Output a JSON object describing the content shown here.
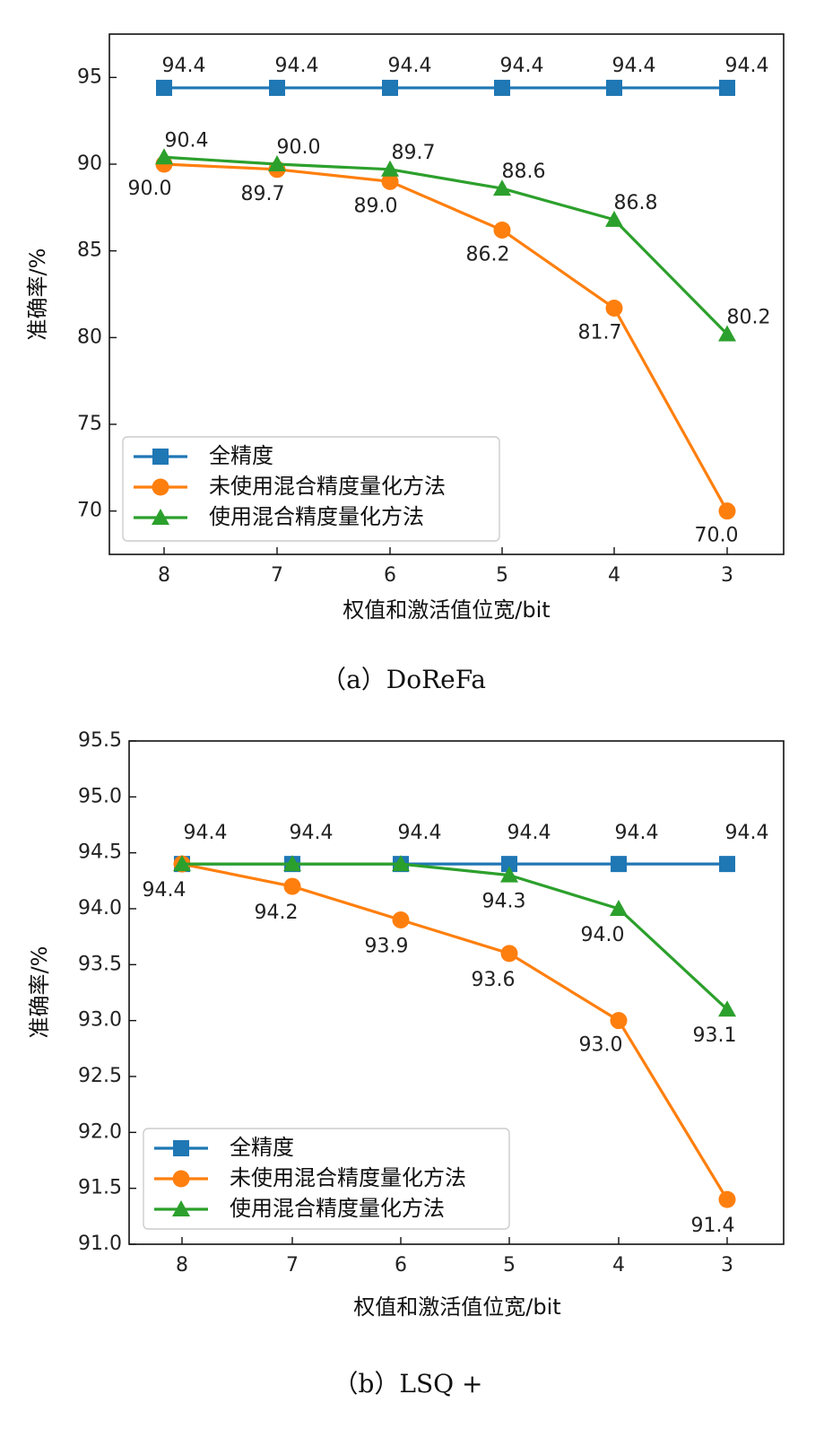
{
  "colors": {
    "full": "#1f77b4",
    "no_mixed": "#ff7f0e",
    "mixed": "#2ca02c"
  },
  "chart_data": [
    {
      "type": "line",
      "caption": "（a）DoReFa",
      "xlabel": "权值和激活值位宽/bit",
      "ylabel": "准确率/%",
      "categories": [
        "8",
        "7",
        "6",
        "5",
        "4",
        "3"
      ],
      "ylim": [
        67.5,
        97.5
      ],
      "yticks": [
        "70",
        "75",
        "80",
        "85",
        "90",
        "95"
      ],
      "grid": false,
      "legend_position": "lower-left",
      "series": [
        {
          "name": "全精度",
          "marker": "square",
          "color_key": "full",
          "values": [
            94.4,
            94.4,
            94.4,
            94.4,
            94.4,
            94.4
          ],
          "labels": [
            "94.4",
            "94.4",
            "94.4",
            "94.4",
            "94.4",
            "94.4"
          ]
        },
        {
          "name": "未使用混合精度量化方法",
          "marker": "circle",
          "color_key": "no_mixed",
          "values": [
            90.0,
            89.7,
            89.0,
            86.2,
            81.7,
            70.0
          ],
          "labels": [
            "90.0",
            "89.7",
            "89.0",
            "86.2",
            "81.7",
            "70.0"
          ]
        },
        {
          "name": "使用混合精度量化方法",
          "marker": "triangle",
          "color_key": "mixed",
          "values": [
            90.4,
            90.0,
            89.7,
            88.6,
            86.8,
            80.2
          ],
          "labels": [
            "90.4",
            "90.0",
            "89.7",
            "88.6",
            "86.8",
            "80.2"
          ]
        }
      ]
    },
    {
      "type": "line",
      "caption": "（b）LSQ +",
      "xlabel": "权值和激活值位宽/bit",
      "ylabel": "准确率/%",
      "categories": [
        "8",
        "7",
        "6",
        "5",
        "4",
        "3"
      ],
      "ylim": [
        91.0,
        95.5
      ],
      "yticks": [
        "91.0",
        "91.5",
        "92.0",
        "92.5",
        "93.0",
        "93.5",
        "94.0",
        "94.5",
        "95.0",
        "95.5"
      ],
      "grid": false,
      "legend_position": "lower-left",
      "series": [
        {
          "name": "全精度",
          "marker": "square",
          "color_key": "full",
          "values": [
            94.4,
            94.4,
            94.4,
            94.4,
            94.4,
            94.4
          ],
          "labels": [
            "94.4",
            "94.4",
            "94.4",
            "94.4",
            "94.4",
            "94.4"
          ]
        },
        {
          "name": "未使用混合精度量化方法",
          "marker": "circle",
          "color_key": "no_mixed",
          "values": [
            94.4,
            94.2,
            93.9,
            93.6,
            93.0,
            91.4
          ],
          "labels": [
            "94.4",
            "94.2",
            "93.9",
            "93.6",
            "93.0",
            "91.4"
          ]
        },
        {
          "name": "使用混合精度量化方法",
          "marker": "triangle",
          "color_key": "mixed",
          "values": [
            94.4,
            94.4,
            94.4,
            94.3,
            94.0,
            93.1
          ],
          "labels": [
            "",
            "",
            "",
            "94.3",
            "94.0",
            "93.1"
          ]
        }
      ]
    }
  ]
}
